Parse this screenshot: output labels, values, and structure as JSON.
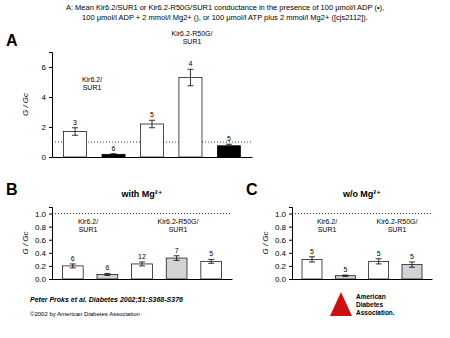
{
  "title": "A: Mean Kir6.2/SUR1 or Kir6.2-R50G/SUR1 conductance in the presence of 100 μmol/l ADP (•),",
  "subtitle": "100 μmol/l ADP + 2 mmol/l Mg2+ (), or 100 μmol/l ATP plus 2 mmol/l Mg2+ ([cjs2112]).",
  "citation": "Peter Proks et al. Diabetes 2002;51:S368-S376",
  "copyright": "©2002 by American Diabetes Association",
  "logo": {
    "text": [
      "American",
      "Diabetes",
      "Association."
    ],
    "color": "#cc1111"
  },
  "chart_data": [
    {
      "type": "bar",
      "panel_label": "A",
      "group_labels": [
        [
          "Kir6.2/",
          "SUR1"
        ],
        [
          "Kir6.2-R50G/",
          "SUR1"
        ]
      ],
      "categories": [
        null,
        null,
        null,
        null,
        null
      ],
      "values": [
        1.7,
        0.18,
        2.2,
        5.3,
        0.75
      ],
      "errors": [
        0.25,
        0.04,
        0.25,
        0.55,
        0.1
      ],
      "n": [
        3,
        6,
        5,
        4,
        5
      ],
      "colors": [
        "white",
        "black",
        "white",
        "white",
        "black"
      ],
      "reference_y": 1.0,
      "y_label": "G / Gc",
      "ylim": [
        0,
        7.0
      ],
      "yticks": [
        0,
        2,
        4,
        6
      ],
      "tick_labels": "y",
      "grid": false
    },
    {
      "type": "bar",
      "panel_label": "B",
      "title": "with Mg²⁺",
      "group_labels": [
        [
          "Kir6.2/",
          "SUR1"
        ],
        [
          "Kir6.2-R50G/",
          "SUR1"
        ]
      ],
      "categories": [
        null,
        null,
        null,
        null,
        null
      ],
      "values": [
        0.2,
        0.07,
        0.23,
        0.32,
        0.27
      ],
      "errors": [
        0.03,
        0.015,
        0.03,
        0.035,
        0.03
      ],
      "n": [
        6,
        6,
        12,
        7,
        5
      ],
      "colors": [
        "white",
        "lightgray",
        "white",
        "lightgray",
        "white"
      ],
      "reference_y": 1.0,
      "y_label": "G / Gc",
      "ylim": [
        0,
        1.1
      ],
      "yticks": [
        {
          "value": 0,
          "label": "0.0"
        },
        0.2,
        0.4,
        0.6,
        0.8,
        {
          "value": 1.0,
          "label": "1.0"
        }
      ],
      "tick_labels": "y",
      "grid": false
    },
    {
      "type": "bar",
      "panel_label": "C",
      "title": "w/o Mg²⁺",
      "group_labels": [
        [
          "Kir6.2/",
          "SUR1"
        ],
        [
          "Kir6.2-R50G/",
          "SUR1"
        ]
      ],
      "categories": [
        null,
        null,
        null,
        null
      ],
      "values": [
        0.3,
        0.05,
        0.27,
        0.22
      ],
      "errors": [
        0.04,
        0.01,
        0.04,
        0.04
      ],
      "n": [
        5,
        5,
        5,
        5
      ],
      "colors": [
        "white",
        "lightgray",
        "white",
        "lightgray"
      ],
      "reference_y": 1.0,
      "y_label": "G / Gc",
      "ylim": [
        0,
        1.1
      ],
      "yticks": [
        {
          "value": 0,
          "label": "0.0"
        },
        0.2,
        0.4,
        0.6,
        0.8,
        {
          "value": 1.0,
          "label": "1.0"
        }
      ],
      "tick_labels": "y",
      "grid": false
    }
  ]
}
